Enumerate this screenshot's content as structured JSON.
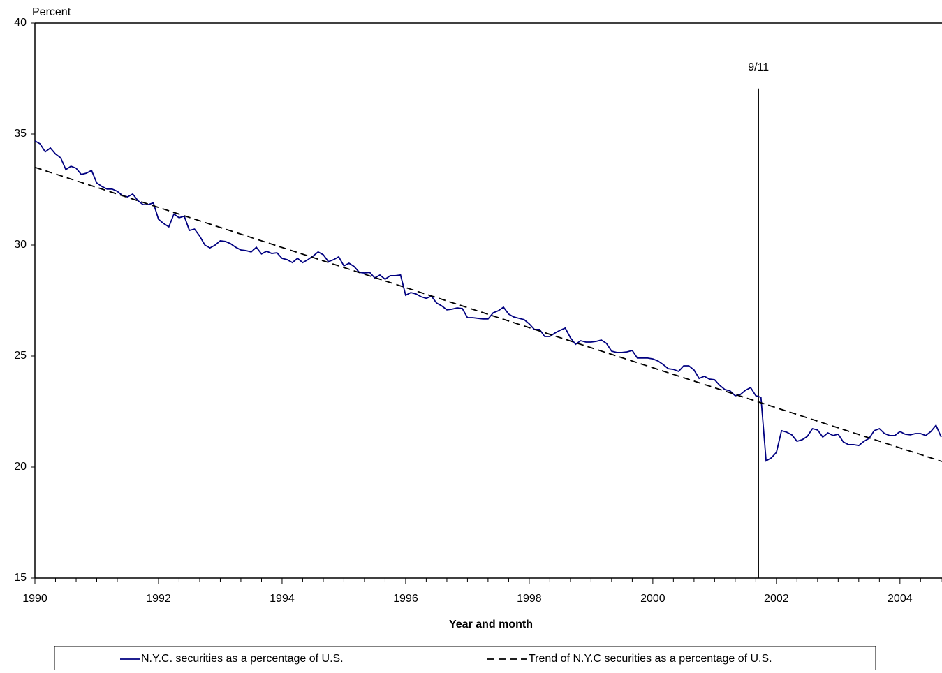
{
  "chart_data": {
    "type": "line",
    "y_label": "Percent",
    "x_label": "Year and month",
    "xlim": [
      1990,
      2004.68
    ],
    "ylim": [
      15,
      40
    ],
    "xticks": [
      1990,
      1992,
      1994,
      1996,
      1998,
      2000,
      2002,
      2004
    ],
    "xminorticks": [
      1990.333,
      1990.667,
      1991,
      1991.333,
      1991.667,
      1992.333,
      1992.667,
      1993,
      1993.333,
      1993.667,
      1994.333,
      1994.667,
      1995,
      1995.333,
      1995.667,
      1996.333,
      1996.667,
      1997,
      1997.333,
      1997.667,
      1998.333,
      1998.667,
      1999,
      1999.333,
      1999.667,
      2000.333,
      2000.667,
      2001,
      2001.333,
      2001.667,
      2002.333,
      2002.667,
      2003,
      2003.333,
      2003.667,
      2004.333,
      2004.667
    ],
    "yticks": [
      15,
      20,
      25,
      30,
      35,
      40
    ],
    "annotation": {
      "text": "9/11",
      "x": 2001.71,
      "y_top": 37.05
    },
    "series": [
      {
        "name": "N.Y.C. securities as a percentage of U.S.",
        "color": "#000080",
        "dash": false,
        "x": [
          1990,
          1990.083,
          1990.167,
          1990.25,
          1990.333,
          1990.417,
          1990.5,
          1990.583,
          1990.667,
          1990.75,
          1990.833,
          1990.917,
          1991,
          1991.083,
          1991.167,
          1991.25,
          1991.333,
          1991.417,
          1991.5,
          1991.583,
          1991.667,
          1991.75,
          1991.833,
          1991.917,
          1992,
          1992.083,
          1992.167,
          1992.25,
          1992.333,
          1992.417,
          1992.5,
          1992.583,
          1992.667,
          1992.75,
          1992.833,
          1992.917,
          1993,
          1993.083,
          1993.167,
          1993.25,
          1993.333,
          1993.417,
          1993.5,
          1993.583,
          1993.667,
          1993.75,
          1993.833,
          1993.917,
          1994,
          1994.083,
          1994.167,
          1994.25,
          1994.333,
          1994.417,
          1994.5,
          1994.583,
          1994.667,
          1994.75,
          1994.833,
          1994.917,
          1995,
          1995.083,
          1995.167,
          1995.25,
          1995.333,
          1995.417,
          1995.5,
          1995.583,
          1995.667,
          1995.75,
          1995.833,
          1995.917,
          1996,
          1996.083,
          1996.167,
          1996.25,
          1996.333,
          1996.417,
          1996.5,
          1996.583,
          1996.667,
          1996.75,
          1996.833,
          1996.917,
          1997,
          1997.083,
          1997.167,
          1997.25,
          1997.333,
          1997.417,
          1997.5,
          1997.583,
          1997.667,
          1997.75,
          1997.833,
          1997.917,
          1998,
          1998.083,
          1998.167,
          1998.25,
          1998.333,
          1998.417,
          1998.5,
          1998.583,
          1998.667,
          1998.75,
          1998.833,
          1998.917,
          1999,
          1999.083,
          1999.167,
          1999.25,
          1999.333,
          1999.417,
          1999.5,
          1999.583,
          1999.667,
          1999.75,
          1999.833,
          1999.917,
          2000,
          2000.083,
          2000.167,
          2000.25,
          2000.333,
          2000.417,
          2000.5,
          2000.583,
          2000.667,
          2000.75,
          2000.833,
          2000.917,
          2001,
          2001.083,
          2001.167,
          2001.25,
          2001.333,
          2001.417,
          2001.5,
          2001.583,
          2001.667,
          2001.75,
          2001.833,
          2001.917,
          2002,
          2002.083,
          2002.167,
          2002.25,
          2002.333,
          2002.417,
          2002.5,
          2002.583,
          2002.667,
          2002.75,
          2002.833,
          2002.917,
          2003,
          2003.083,
          2003.167,
          2003.25,
          2003.333,
          2003.417,
          2003.5,
          2003.583,
          2003.667,
          2003.75,
          2003.833,
          2003.917,
          2004,
          2004.083,
          2004.167,
          2004.25,
          2004.333,
          2004.417,
          2004.5,
          2004.583,
          2004.667
        ],
        "values": [
          34.69,
          34.56,
          34.2,
          34.37,
          34.1,
          33.93,
          33.4,
          33.55,
          33.46,
          33.18,
          33.24,
          33.36,
          32.8,
          32.64,
          32.52,
          32.52,
          32.42,
          32.23,
          32.17,
          32.3,
          32.0,
          31.82,
          31.82,
          31.9,
          31.16,
          30.97,
          30.82,
          31.4,
          31.23,
          31.3,
          30.66,
          30.72,
          30.4,
          30.0,
          29.87,
          30.0,
          30.19,
          30.16,
          30.06,
          29.9,
          29.78,
          29.75,
          29.69,
          29.9,
          29.6,
          29.72,
          29.62,
          29.65,
          29.4,
          29.34,
          29.21,
          29.4,
          29.21,
          29.34,
          29.5,
          29.69,
          29.56,
          29.25,
          29.34,
          29.47,
          29.06,
          29.18,
          29.03,
          28.77,
          28.74,
          28.77,
          28.52,
          28.65,
          28.46,
          28.62,
          28.62,
          28.65,
          27.74,
          27.86,
          27.8,
          27.67,
          27.6,
          27.7,
          27.39,
          27.26,
          27.08,
          27.11,
          27.17,
          27.14,
          26.73,
          26.73,
          26.7,
          26.67,
          26.67,
          26.95,
          27.04,
          27.2,
          26.89,
          26.76,
          26.7,
          26.64,
          26.45,
          26.2,
          26.2,
          25.88,
          25.88,
          26.04,
          26.16,
          26.26,
          25.82,
          25.53,
          25.69,
          25.63,
          25.63,
          25.66,
          25.72,
          25.57,
          25.22,
          25.16,
          25.16,
          25.19,
          25.25,
          24.91,
          24.91,
          24.91,
          24.87,
          24.78,
          24.62,
          24.43,
          24.4,
          24.31,
          24.56,
          24.56,
          24.37,
          23.99,
          24.09,
          23.96,
          23.93,
          23.68,
          23.49,
          23.43,
          23.21,
          23.27,
          23.46,
          23.58,
          23.21,
          23.14,
          20.28,
          20.41,
          20.66,
          21.64,
          21.57,
          21.45,
          21.16,
          21.23,
          21.38,
          21.73,
          21.67,
          21.35,
          21.54,
          21.42,
          21.48,
          21.13,
          21.01,
          21.01,
          20.97,
          21.16,
          21.29,
          21.64,
          21.73,
          21.51,
          21.42,
          21.42,
          21.6,
          21.48,
          21.45,
          21.51,
          21.51,
          21.42,
          21.6,
          21.88,
          21.35
        ]
      },
      {
        "name": "Trend of N.Y.C securities as a percentage of U.S.",
        "color": "#000000",
        "dash": true,
        "x": [
          1990,
          2004.68
        ],
        "values": [
          33.5,
          20.25
        ]
      }
    ]
  }
}
